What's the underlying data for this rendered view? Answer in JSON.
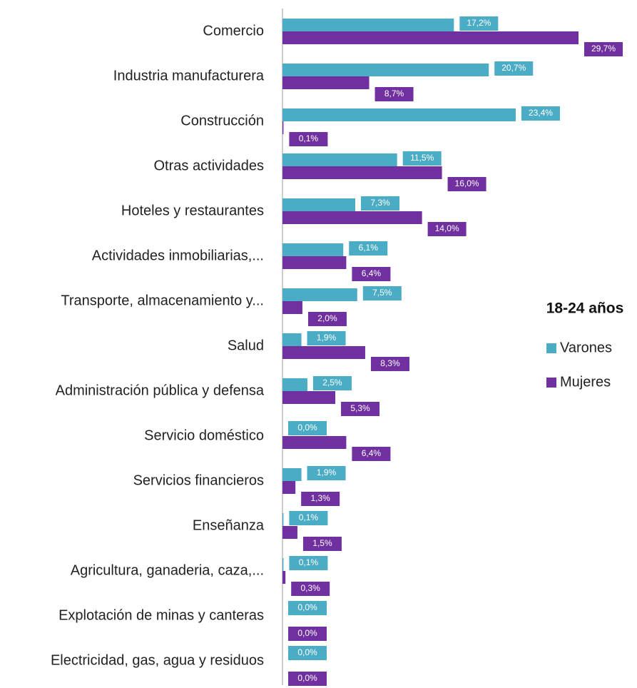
{
  "chart_data": {
    "type": "barh",
    "legend_title": "18-24 años",
    "categories": [
      "Comercio",
      "Industria manufacturera",
      "Construcción",
      "Otras actividades",
      "Hoteles y restaurantes",
      "Actividades inmobiliarias,...",
      "Transporte, almacenamiento y...",
      "Salud",
      "Administración pública y defensa",
      "Servicio doméstico",
      "Servicios financieros",
      "Enseñanza",
      "Agricultura, ganaderia, caza,...",
      "Explotación de minas y canteras",
      "Electricidad, gas, agua y residuos"
    ],
    "series": [
      {
        "name": "Varones",
        "color": "#4bacc6",
        "values": [
          17.2,
          20.7,
          23.4,
          11.5,
          7.3,
          6.1,
          7.5,
          1.9,
          2.5,
          0.0,
          1.9,
          0.1,
          0.1,
          0.0,
          0.0
        ],
        "value_labels": [
          "17,2%",
          "20,7%",
          "23,4%",
          "11,5%",
          "7,3%",
          "6,1%",
          "7,5%",
          "1,9%",
          "2,5%",
          "0,0%",
          "1,9%",
          "0,1%",
          "0,1%",
          "0,0%",
          "0,0%"
        ]
      },
      {
        "name": "Mujeres",
        "color": "#7030a0",
        "values": [
          29.7,
          8.7,
          0.1,
          16.0,
          14.0,
          6.4,
          2.0,
          8.3,
          5.3,
          6.4,
          1.3,
          1.5,
          0.3,
          0.0,
          0.0
        ],
        "value_labels": [
          "29,7%",
          "8,7%",
          "0,1%",
          "16,0%",
          "14,0%",
          "6,4%",
          "2,0%",
          "8,3%",
          "5,3%",
          "6,4%",
          "1,3%",
          "1,5%",
          "0,3%",
          "0,0%",
          "0,0%"
        ]
      }
    ]
  }
}
